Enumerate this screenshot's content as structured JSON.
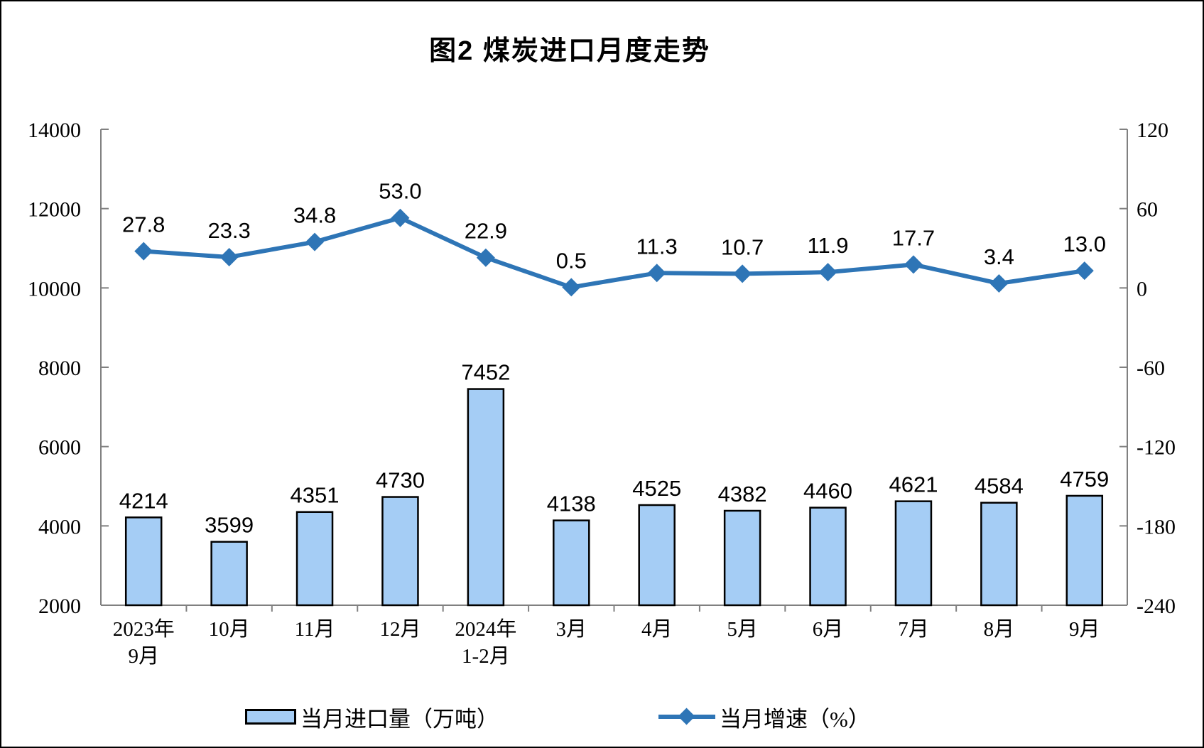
{
  "figure": {
    "title": "图2 煤炭进口月度走势"
  },
  "chart_data": {
    "type": "combo",
    "categories": [
      "2023年\n9月",
      "10月",
      "11月",
      "12月",
      "2024年\n1-2月",
      "3月",
      "4月",
      "5月",
      "6月",
      "7月",
      "8月",
      "9月"
    ],
    "series": [
      {
        "name": "当月进口量（万吨）",
        "type": "bar",
        "axis": "left",
        "values": [
          4214,
          3599,
          4351,
          4730,
          7452,
          4138,
          4525,
          4382,
          4460,
          4621,
          4584,
          4759
        ],
        "label_decimals": 0
      },
      {
        "name": "当月增速（%）",
        "type": "line",
        "axis": "right",
        "values": [
          27.8,
          23.3,
          34.8,
          53.0,
          22.9,
          0.5,
          11.3,
          10.7,
          11.9,
          17.7,
          3.4,
          13.0
        ],
        "label_decimals": 1
      }
    ],
    "left_axis": {
      "min": 2000,
      "max": 14000,
      "ticks": [
        2000,
        4000,
        6000,
        8000,
        10000,
        12000,
        14000
      ]
    },
    "right_axis": {
      "min": -240,
      "max": 120,
      "ticks": [
        -240,
        -180,
        -120,
        -60,
        0,
        60,
        120
      ]
    },
    "grid": false,
    "data_labels": true,
    "legend_position": "bottom"
  },
  "colors": {
    "background": "#FFFFFF",
    "bar_fill": "#A5CDF5",
    "bar_border": "#000000",
    "line": "#2E75B6",
    "axis": "#808080",
    "text": "#000000"
  }
}
